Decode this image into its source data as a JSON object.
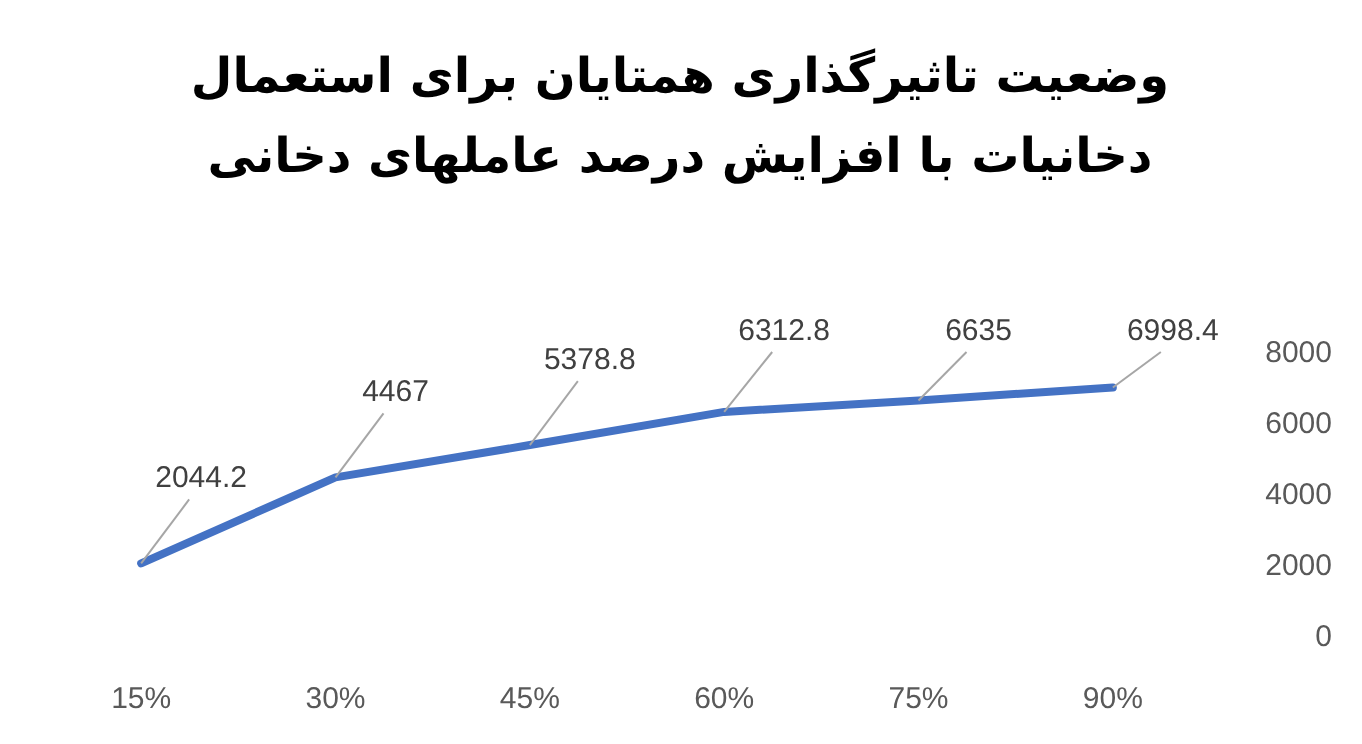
{
  "chart_data": {
    "type": "line",
    "title": "وضعیت تاثیرگذاری همتایان برای استعمال دخانیات با افزایش درصد عاملهای دخانی",
    "categories": [
      "15%",
      "30%",
      "45%",
      "60%",
      "75%",
      "90%"
    ],
    "series": [
      {
        "color": "#4472c4",
        "values": [
          2044.2,
          4467,
          5378.8,
          6312.8,
          6635,
          6998.4
        ]
      }
    ],
    "ylim": [
      0,
      8000
    ],
    "yticks": [
      0,
      2000,
      4000,
      6000,
      8000
    ],
    "data_labels": true,
    "grid": false,
    "marker": "none",
    "line_style": "solid"
  }
}
